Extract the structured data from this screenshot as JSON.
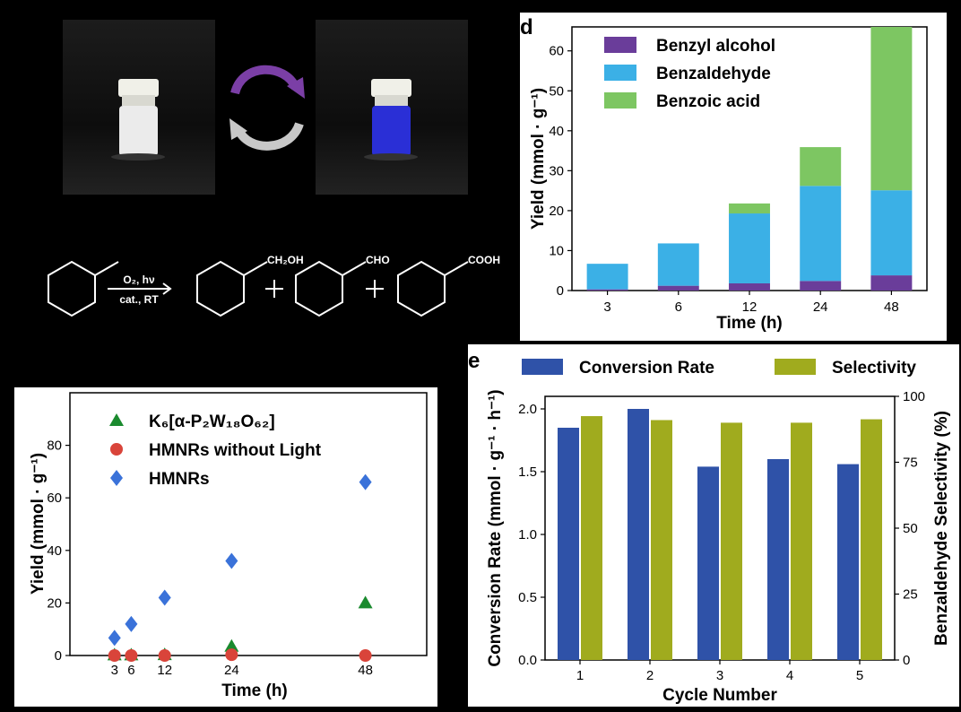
{
  "photos": {
    "cycle_arrow_top_color": "#7b3fa6",
    "cycle_arrow_bottom_color": "#c8c8c8",
    "before_liquid_color": "#ebebeb",
    "after_liquid_color": "#2a2fd6"
  },
  "reaction": {
    "condition_top": "O₂, hν",
    "condition_bottom": "cat., RT",
    "product1": "CH₂OH",
    "product2": "CHO",
    "product3": "COOH"
  },
  "chart_data": [
    {
      "id": "d",
      "panel_label": "d",
      "type": "bar",
      "stacked": true,
      "categories": [
        "3",
        "6",
        "12",
        "24",
        "48"
      ],
      "series": [
        {
          "name": "Benzyl alcohol",
          "color": "#6a3d9a",
          "values": [
            0.3,
            1.2,
            1.8,
            2.4,
            3.8
          ]
        },
        {
          "name": "Benzaldehyde",
          "color": "#3bb0e6",
          "values": [
            6.4,
            10.6,
            17.5,
            23.8,
            21.3
          ]
        },
        {
          "name": "Benzoic acid",
          "color": "#7dc662",
          "values": [
            0.0,
            0.0,
            2.5,
            9.7,
            40.9
          ]
        }
      ],
      "xlabel": "Time (h)",
      "ylabel": "Yield (mmol · g⁻¹)",
      "ylim": [
        0,
        66
      ],
      "yticks": [
        0,
        10,
        20,
        30,
        40,
        50,
        60
      ],
      "legend": "top-left"
    },
    {
      "id": "c",
      "type": "scatter",
      "x": [
        3,
        6,
        12,
        24,
        48
      ],
      "series": [
        {
          "name": "K₆[α-P₂W₁₈O₆₂]",
          "marker": "triangle",
          "color": "#1a8a2e",
          "values": [
            0.2,
            0.2,
            0.3,
            3.5,
            20
          ]
        },
        {
          "name": "HMNRs without Light",
          "marker": "circle",
          "color": "#d9443a",
          "values": [
            0,
            0,
            0,
            0.3,
            0
          ]
        },
        {
          "name": "HMNRs",
          "marker": "diamond",
          "color": "#3a72d9",
          "values": [
            6.7,
            12,
            22,
            36,
            66
          ]
        }
      ],
      "xlabel": "Time (h)",
      "ylabel": "Yield (mmol · g⁻¹)",
      "xticks": [
        3,
        6,
        12,
        24,
        48
      ],
      "xlim": [
        -5,
        59
      ],
      "ylim": [
        0,
        100
      ],
      "yticks": [
        0,
        20,
        40,
        60,
        80
      ],
      "legend": "top-left"
    },
    {
      "id": "e",
      "panel_label": "e",
      "type": "bar",
      "categories": [
        "1",
        "2",
        "3",
        "4",
        "5"
      ],
      "series": [
        {
          "name": "Conversion Rate",
          "color": "#2f52a8",
          "axis": "left",
          "values": [
            1.85,
            2.0,
            1.54,
            1.6,
            1.56
          ]
        },
        {
          "name": "Selectivity",
          "color": "#a0ab1e",
          "axis": "right",
          "values": [
            92.5,
            91,
            90,
            90,
            91.3
          ]
        }
      ],
      "xlabel": "Cycle Number",
      "ylabel_left": "Conversion Rate (mmol · g⁻¹ · h⁻¹)",
      "ylabel_right": "Benzaldehyde Selectivity (%)",
      "ylim_left": [
        0,
        2.1
      ],
      "yticks_left": [
        0.0,
        0.5,
        1.0,
        1.5,
        2.0
      ],
      "ylim_right": [
        0,
        100
      ],
      "yticks_right": [
        0,
        25,
        50,
        75,
        100
      ],
      "legend": "top"
    }
  ]
}
